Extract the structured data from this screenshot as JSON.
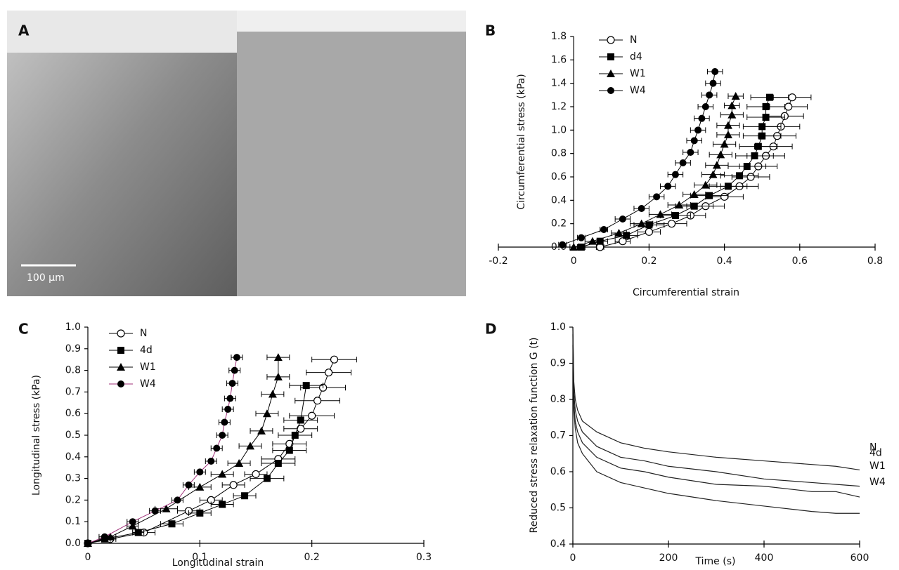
{
  "image_panel": {
    "label": "A",
    "scale_bar": "100 μm"
  },
  "chart_data": [
    {
      "type": "scatter-line",
      "panel": "B",
      "x_label": "Circumferential strain",
      "y_label": "Circumferential stress (kPa)",
      "xlim": [
        -0.2,
        0.8
      ],
      "xticks": [
        -0.2,
        0,
        0.2,
        0.4,
        0.6,
        0.8
      ],
      "ylim": [
        0,
        1.8
      ],
      "yticks": [
        {
          "value": 0,
          "label": "0.0"
        },
        0.2,
        0.4,
        0.6,
        0.8,
        {
          "value": 1,
          "label": "1.0"
        },
        1.2,
        1.4,
        1.6,
        1.8
      ],
      "legend": "upper left",
      "series": [
        {
          "name": "N",
          "marker": "open-circle",
          "color": "#000000",
          "x": [
            0.07,
            0.13,
            0.2,
            0.26,
            0.31,
            0.35,
            0.4,
            0.44,
            0.47,
            0.49,
            0.51,
            0.53,
            0.54,
            0.55,
            0.56,
            0.57,
            0.58
          ],
          "values": [
            0,
            0.05,
            0.13,
            0.2,
            0.27,
            0.35,
            0.43,
            0.52,
            0.6,
            0.69,
            0.78,
            0.86,
            0.95,
            1.03,
            1.12,
            1.2,
            1.28
          ],
          "xerr": [
            0.01,
            0.02,
            0.03,
            0.04,
            0.04,
            0.05,
            0.05,
            0.05,
            0.05,
            0.05,
            0.05,
            0.05,
            0.05,
            0.05,
            0.05,
            0.05,
            0.05
          ]
        },
        {
          "name": "d4",
          "marker": "square",
          "color": "#000000",
          "x": [
            0.02,
            0.07,
            0.14,
            0.2,
            0.27,
            0.32,
            0.36,
            0.41,
            0.44,
            0.46,
            0.48,
            0.49,
            0.5,
            0.5,
            0.51,
            0.51,
            0.52
          ],
          "values": [
            0,
            0.05,
            0.1,
            0.19,
            0.27,
            0.35,
            0.44,
            0.52,
            0.61,
            0.69,
            0.78,
            0.86,
            0.95,
            1.03,
            1.11,
            1.2,
            1.28
          ],
          "xerr": [
            0.01,
            0.02,
            0.03,
            0.04,
            0.04,
            0.05,
            0.05,
            0.05,
            0.05,
            0.05,
            0.05,
            0.05,
            0.05,
            0.05,
            0.05,
            0.05,
            0.05
          ]
        },
        {
          "name": "W1",
          "marker": "triangle",
          "color": "#000000",
          "x": [
            0,
            0.05,
            0.12,
            0.18,
            0.23,
            0.28,
            0.32,
            0.35,
            0.37,
            0.38,
            0.39,
            0.4,
            0.41,
            0.41,
            0.42,
            0.42,
            0.43
          ],
          "values": [
            0,
            0.05,
            0.12,
            0.2,
            0.28,
            0.36,
            0.45,
            0.53,
            0.62,
            0.7,
            0.79,
            0.88,
            0.96,
            1.04,
            1.13,
            1.21,
            1.29
          ],
          "xerr": [
            0.01,
            0.02,
            0.02,
            0.03,
            0.03,
            0.03,
            0.03,
            0.03,
            0.03,
            0.03,
            0.03,
            0.03,
            0.03,
            0.03,
            0.03,
            0.02,
            0.02
          ]
        },
        {
          "name": "W4",
          "marker": "circle",
          "color": "#000000",
          "x": [
            -0.03,
            0.02,
            0.08,
            0.13,
            0.18,
            0.22,
            0.25,
            0.27,
            0.29,
            0.31,
            0.32,
            0.33,
            0.34,
            0.35,
            0.36,
            0.37,
            0.375
          ],
          "values": [
            0.02,
            0.08,
            0.15,
            0.24,
            0.33,
            0.43,
            0.52,
            0.62,
            0.72,
            0.81,
            0.91,
            1.0,
            1.1,
            1.2,
            1.3,
            1.4,
            1.5
          ],
          "xerr": [
            0.01,
            0.01,
            0.01,
            0.02,
            0.02,
            0.02,
            0.02,
            0.02,
            0.02,
            0.02,
            0.02,
            0.02,
            0.02,
            0.02,
            0.02,
            0.02,
            0.02
          ]
        }
      ]
    },
    {
      "type": "scatter-line",
      "panel": "C",
      "x_label": "Longitudinal strain",
      "y_label": "Longitudinal stress (kPa)",
      "xlim": [
        0,
        0.3
      ],
      "xticks": [
        0,
        0.1,
        0.2,
        0.3
      ],
      "ylim": [
        0,
        1
      ],
      "yticks": [
        {
          "value": 0,
          "label": "0.0"
        },
        0.1,
        0.2,
        0.3,
        0.4,
        0.5,
        0.6,
        0.7,
        0.8,
        0.9,
        {
          "value": 1,
          "label": "1.0"
        }
      ],
      "legend": "upper left",
      "series": [
        {
          "name": "N",
          "marker": "open-circle",
          "color": "#000000",
          "x": [
            0,
            0.02,
            0.05,
            0.09,
            0.11,
            0.13,
            0.15,
            0.17,
            0.18,
            0.19,
            0.2,
            0.205,
            0.21,
            0.215,
            0.22
          ],
          "values": [
            0,
            0.02,
            0.05,
            0.15,
            0.2,
            0.27,
            0.32,
            0.39,
            0.46,
            0.53,
            0.59,
            0.66,
            0.72,
            0.79,
            0.85
          ],
          "xerr": [
            0,
            0.005,
            0.01,
            0.01,
            0.01,
            0.01,
            0.01,
            0.015,
            0.015,
            0.015,
            0.02,
            0.02,
            0.02,
            0.02,
            0.02
          ]
        },
        {
          "name": "4d",
          "marker": "square",
          "color": "#000000",
          "x": [
            0,
            0.015,
            0.045,
            0.075,
            0.1,
            0.12,
            0.14,
            0.16,
            0.17,
            0.18,
            0.185,
            0.19,
            0.195
          ],
          "values": [
            0,
            0.02,
            0.05,
            0.09,
            0.14,
            0.18,
            0.22,
            0.3,
            0.37,
            0.43,
            0.5,
            0.57,
            0.73
          ],
          "xerr": [
            0,
            0.005,
            0.005,
            0.01,
            0.01,
            0.01,
            0.01,
            0.015,
            0.015,
            0.015,
            0.015,
            0.015,
            0.015
          ]
        },
        {
          "name": "W1",
          "marker": "triangle",
          "color": "#000000",
          "x": [
            0,
            0.02,
            0.04,
            0.07,
            0.1,
            0.12,
            0.135,
            0.145,
            0.155,
            0.16,
            0.165,
            0.17,
            0.17
          ],
          "values": [
            0,
            0.03,
            0.08,
            0.16,
            0.26,
            0.32,
            0.37,
            0.45,
            0.52,
            0.6,
            0.69,
            0.77,
            0.86
          ],
          "xerr": [
            0,
            0.005,
            0.005,
            0.01,
            0.01,
            0.01,
            0.01,
            0.01,
            0.01,
            0.01,
            0.01,
            0.01,
            0.01
          ]
        },
        {
          "name": "W4",
          "marker": "circle",
          "color": "#a0307a",
          "x": [
            0,
            0.015,
            0.04,
            0.06,
            0.08,
            0.09,
            0.1,
            0.11,
            0.115,
            0.12,
            0.122,
            0.125,
            0.127,
            0.129,
            0.131,
            0.133
          ],
          "values": [
            0,
            0.03,
            0.1,
            0.15,
            0.2,
            0.27,
            0.33,
            0.38,
            0.44,
            0.5,
            0.56,
            0.62,
            0.67,
            0.74,
            0.8,
            0.86
          ],
          "xerr": [
            0,
            0.005,
            0.005,
            0.005,
            0.005,
            0.005,
            0.005,
            0.005,
            0.005,
            0.005,
            0.005,
            0.005,
            0.005,
            0.005,
            0.005,
            0.005
          ]
        }
      ]
    },
    {
      "type": "line",
      "panel": "D",
      "x_label": "Time (s)",
      "y_label": "Reduced stress relaxation function G (t)",
      "xlim": [
        0,
        600
      ],
      "xticks": [
        0,
        200,
        400,
        600
      ],
      "ylim": [
        0.4,
        1
      ],
      "yticks": [
        0.4,
        0.5,
        0.6,
        0.7,
        0.8,
        0.9,
        {
          "value": 1,
          "label": "1.0"
        }
      ],
      "x": [
        0,
        2,
        5,
        10,
        20,
        50,
        100,
        150,
        200,
        300,
        400,
        500,
        550,
        600
      ],
      "series": [
        {
          "name": "N",
          "color": "#222222",
          "values": [
            1.0,
            0.85,
            0.8,
            0.77,
            0.74,
            0.71,
            0.68,
            0.665,
            0.655,
            0.64,
            0.63,
            0.62,
            0.615,
            0.605
          ]
        },
        {
          "name": "4d",
          "color": "#222222",
          "values": [
            1.0,
            0.82,
            0.77,
            0.74,
            0.71,
            0.67,
            0.64,
            0.63,
            0.615,
            0.6,
            0.58,
            0.57,
            0.565,
            0.56
          ]
        },
        {
          "name": "W1",
          "color": "#222222",
          "values": [
            0.98,
            0.79,
            0.74,
            0.71,
            0.68,
            0.64,
            0.61,
            0.6,
            0.585,
            0.565,
            0.56,
            0.545,
            0.545,
            0.53
          ]
        },
        {
          "name": "W4",
          "color": "#222222",
          "values": [
            0.95,
            0.77,
            0.72,
            0.68,
            0.65,
            0.6,
            0.57,
            0.555,
            0.54,
            0.52,
            0.505,
            0.49,
            0.485,
            0.485
          ]
        }
      ]
    }
  ]
}
